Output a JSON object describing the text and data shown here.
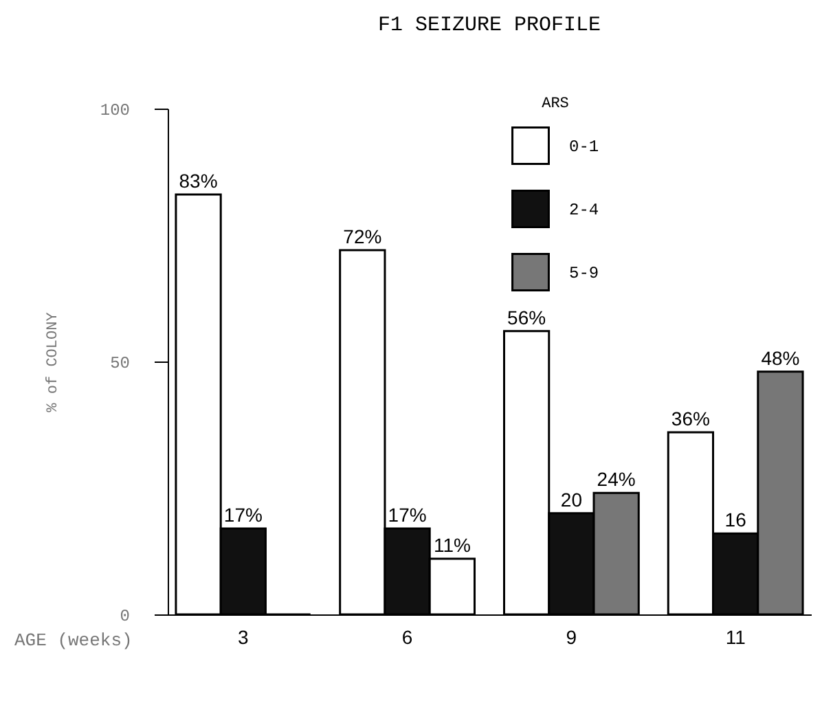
{
  "chart_data": {
    "type": "bar",
    "title": "F1 SEIZURE PROFILE",
    "xlabel": "AGE (weeks)",
    "ylabel": "% of COLONY",
    "legend_title": "ARS",
    "legend": "top right",
    "grid": false,
    "categories": [
      "3",
      "6",
      "9",
      "11"
    ],
    "ylim": [
      0,
      100
    ],
    "yticks": [
      0,
      50,
      100
    ],
    "series": [
      {
        "name": "0-1",
        "color": "#ffffff",
        "values": [
          83,
          72,
          56,
          36
        ],
        "value_labels": [
          "83%",
          "72%",
          "56%",
          "36%"
        ]
      },
      {
        "name": "2-4",
        "color": "#111111",
        "values": [
          17,
          17,
          20,
          16
        ],
        "value_labels": [
          "17%",
          "17%",
          "20",
          "16"
        ]
      },
      {
        "name": "5-9",
        "color": "#777777",
        "colors": [
          "#000000",
          "#ffffff",
          "#777777",
          "#777777"
        ],
        "values": [
          0,
          11,
          24,
          48
        ],
        "value_labels": [
          null,
          "11%",
          "24%",
          "48%"
        ]
      }
    ]
  }
}
